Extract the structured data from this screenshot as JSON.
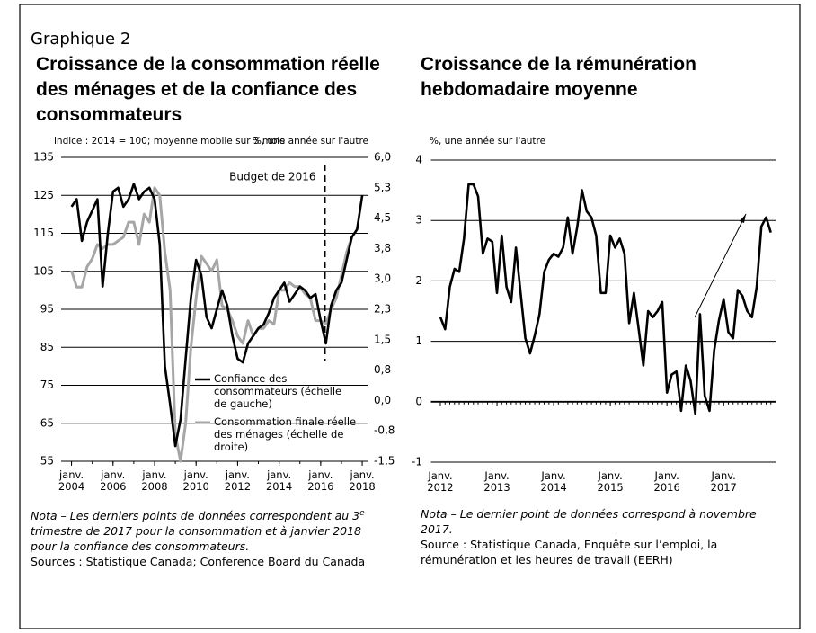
{
  "header": "Graphique 2",
  "chart_data": [
    {
      "type": "line",
      "title": "Croissance de la consommation réelle des ménages et de la confiance des consommateurs",
      "ylabel": "indice : 2014 = 100; moyenne mobile sur 3 mois",
      "y2label": "%, une année sur l'autre",
      "xlim": [
        2003.5,
        2018.3
      ],
      "xticks": [
        {
          "value": 2004,
          "label": "janv. 2004"
        },
        {
          "value": 2006,
          "label": "janv. 2006"
        },
        {
          "value": 2008,
          "label": "janv. 2008"
        },
        {
          "value": 2010,
          "label": "janv. 2010"
        },
        {
          "value": 2012,
          "label": "janv. 2012"
        },
        {
          "value": 2014,
          "label": "janv. 2014"
        },
        {
          "value": 2016,
          "label": "janv. 2016"
        },
        {
          "value": 2018,
          "label": "janv. 2018"
        }
      ],
      "ylim": [
        55,
        135
      ],
      "yticks": [
        55,
        65,
        75,
        85,
        95,
        105,
        115,
        125,
        135
      ],
      "y2lim": [
        -1.5,
        6
      ],
      "y2ticks": [
        {
          "value": -1.5,
          "label": "-1,5"
        },
        {
          "value": -0.75,
          "label": "-0,8"
        },
        {
          "value": 0,
          "label": "0,0"
        },
        {
          "value": 0.75,
          "label": "0,8"
        },
        {
          "value": 1.5,
          "label": "1,5"
        },
        {
          "value": 2.25,
          "label": "2,3"
        },
        {
          "value": 3,
          "label": "3,0"
        },
        {
          "value": 3.75,
          "label": "3,8"
        },
        {
          "value": 4.5,
          "label": "4,5"
        },
        {
          "value": 5.25,
          "label": "5,3"
        },
        {
          "value": 6,
          "label": "6,0"
        }
      ],
      "grid": true,
      "annotation": {
        "text": "Budget de 2016",
        "x": 2016.2
      },
      "series": [
        {
          "name": "Confiance des consommateurs (échelle de gauche)",
          "color": "#000000",
          "x": [
            2004,
            2004.25,
            2004.5,
            2004.75,
            2005,
            2005.25,
            2005.5,
            2005.75,
            2006,
            2006.25,
            2006.5,
            2006.75,
            2007,
            2007.25,
            2007.5,
            2007.75,
            2008,
            2008.25,
            2008.5,
            2008.75,
            2009,
            2009.25,
            2009.5,
            2009.75,
            2010,
            2010.25,
            2010.5,
            2010.75,
            2011,
            2011.25,
            2011.5,
            2011.75,
            2012,
            2012.25,
            2012.5,
            2012.75,
            2013,
            2013.25,
            2013.5,
            2013.75,
            2014,
            2014.25,
            2014.5,
            2014.75,
            2015,
            2015.25,
            2015.5,
            2015.75,
            2016,
            2016.25,
            2016.5,
            2016.75,
            2017,
            2017.25,
            2017.5,
            2017.75,
            2018
          ],
          "values": [
            122,
            124,
            113,
            118,
            121,
            124,
            101,
            115,
            126,
            127,
            122,
            124,
            128,
            124,
            126,
            127,
            124,
            112,
            80,
            70,
            59,
            66,
            82,
            98,
            108,
            104,
            93,
            90,
            95,
            100,
            96,
            88,
            82,
            81,
            86,
            88,
            90,
            91,
            94,
            98,
            100,
            102,
            97,
            99,
            101,
            100,
            98,
            99,
            92,
            86,
            96,
            100,
            102,
            108,
            114,
            116,
            125
          ]
        },
        {
          "name": "Consommation finale réelle des ménages (échelle de droite)",
          "color": "#a6a6a6",
          "axis": "y2",
          "x": [
            2004,
            2004.25,
            2004.5,
            2004.75,
            2005,
            2005.25,
            2005.5,
            2005.75,
            2006,
            2006.25,
            2006.5,
            2006.75,
            2007,
            2007.25,
            2007.5,
            2007.75,
            2008,
            2008.25,
            2008.5,
            2008.75,
            2009,
            2009.25,
            2009.5,
            2009.75,
            2010,
            2010.25,
            2010.5,
            2010.75,
            2011,
            2011.25,
            2011.5,
            2011.75,
            2012,
            2012.25,
            2012.5,
            2012.75,
            2013,
            2013.25,
            2013.5,
            2013.75,
            2014,
            2014.25,
            2014.5,
            2014.75,
            2015,
            2015.25,
            2015.5,
            2015.75,
            2016,
            2016.25,
            2016.5,
            2016.75,
            2017,
            2017.25,
            2017.5
          ],
          "values": [
            3.2,
            2.8,
            2.8,
            3.3,
            3.5,
            3.85,
            3.75,
            3.85,
            3.85,
            3.94,
            4.03,
            4.4,
            4.4,
            3.85,
            4.6,
            4.4,
            5.25,
            5.06,
            3.66,
            2.72,
            -0.84,
            -1.5,
            -0.56,
            1.31,
            2.53,
            3.56,
            3.38,
            3.19,
            3.47,
            2.34,
            2.25,
            1.97,
            1.59,
            1.41,
            1.97,
            1.59,
            1.78,
            1.78,
            1.97,
            1.88,
            2.72,
            2.72,
            2.91,
            2.81,
            2.81,
            2.63,
            2.53,
            1.97,
            1.97,
            1.88,
            2.25,
            2.53,
            3.09,
            3.66,
            4.03
          ]
        }
      ],
      "note": {
        "label": "Nota",
        "text": [
          "– Les derniers points de données correspondent au 3",
          "e",
          " trimestre de 2017 pour la consommation et à janvier 2018 pour la confiance des consommateurs."
        ]
      },
      "source": "Sources : Statistique Canada; Conference Board du Canada"
    },
    {
      "type": "line",
      "title": "Croissance de la rémunération hebdomadaire moyenne",
      "ylabel": "%, une année sur l'autre",
      "xlim": [
        "2011-11",
        "2017-12"
      ],
      "xticks": [
        {
          "value": "2012-01",
          "label": "Janv. 2012"
        },
        {
          "value": "2013-01",
          "label": "Janv. 2013"
        },
        {
          "value": "2014-01",
          "label": "Janv. 2014"
        },
        {
          "value": "2015-01",
          "label": "Janv. 2015"
        },
        {
          "value": "2016-01",
          "label": "Janv. 2016"
        },
        {
          "value": "2017-01",
          "label": "Janv. 2017"
        }
      ],
      "ylim": [
        -1,
        4
      ],
      "yticks": [
        -1,
        0,
        1,
        2,
        3,
        4
      ],
      "grid": true,
      "x": [
        "2012-01",
        "2012-02",
        "2012-03",
        "2012-04",
        "2012-05",
        "2012-06",
        "2012-07",
        "2012-08",
        "2012-09",
        "2012-10",
        "2012-11",
        "2012-12",
        "2013-01",
        "2013-02",
        "2013-03",
        "2013-04",
        "2013-05",
        "2013-06",
        "2013-07",
        "2013-08",
        "2013-09",
        "2013-10",
        "2013-11",
        "2013-12",
        "2014-01",
        "2014-02",
        "2014-03",
        "2014-04",
        "2014-05",
        "2014-06",
        "2014-07",
        "2014-08",
        "2014-09",
        "2014-10",
        "2014-11",
        "2014-12",
        "2015-01",
        "2015-02",
        "2015-03",
        "2015-04",
        "2015-05",
        "2015-06",
        "2015-07",
        "2015-08",
        "2015-09",
        "2015-10",
        "2015-11",
        "2015-12",
        "2016-01",
        "2016-02",
        "2016-03",
        "2016-04",
        "2016-05",
        "2016-06",
        "2016-07",
        "2016-08",
        "2016-09",
        "2016-10",
        "2016-11",
        "2016-12",
        "2017-01",
        "2017-02",
        "2017-03",
        "2017-04",
        "2017-05",
        "2017-06",
        "2017-07",
        "2017-08",
        "2017-09",
        "2017-10",
        "2017-11"
      ],
      "series": [
        {
          "color": "#000000",
          "values": [
            1.4,
            1.2,
            1.9,
            2.2,
            2.15,
            2.7,
            3.6,
            3.6,
            3.4,
            2.45,
            2.7,
            2.65,
            1.8,
            2.75,
            1.9,
            1.65,
            2.55,
            1.8,
            1.05,
            0.8,
            1.1,
            1.45,
            2.15,
            2.35,
            2.45,
            2.4,
            2.55,
            3.05,
            2.45,
            2.9,
            3.5,
            3.15,
            3.05,
            2.75,
            1.8,
            1.8,
            2.75,
            2.55,
            2.7,
            2.45,
            1.3,
            1.8,
            1.2,
            0.6,
            1.5,
            1.4,
            1.5,
            1.65,
            0.15,
            0.45,
            0.5,
            -0.15,
            0.6,
            0.35,
            -0.2,
            1.45,
            0.1,
            -0.15,
            0.85,
            1.35,
            1.7,
            1.15,
            1.05,
            1.85,
            1.75,
            1.5,
            1.4,
            1.9,
            2.9,
            3.05,
            2.8
          ]
        }
      ],
      "note": {
        "label": "Nota",
        "text": [
          "– Le dernier point de données correspond à novembre 2017."
        ]
      },
      "source": "Source : Statistique Canada, Enquête sur l’emploi, la rémunération et les heures de travail (EERH)"
    }
  ]
}
